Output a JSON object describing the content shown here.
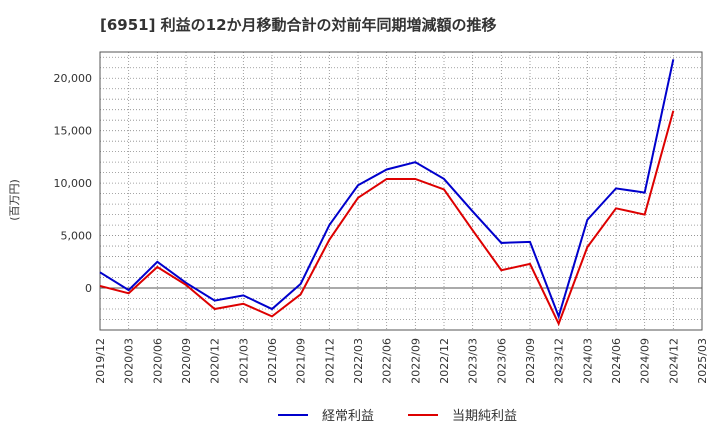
{
  "chart_data": {
    "type": "line",
    "title": "[6951]  利益の12か月移動合計の対前年同期増減額の推移",
    "ylabel": "(百万円)",
    "xlabel": "",
    "ylim": [
      -4000,
      22500
    ],
    "yticks": [
      0,
      5000,
      10000,
      15000,
      20000
    ],
    "ytick_labels": [
      "0",
      "5,000",
      "10,000",
      "15,000",
      "20,000"
    ],
    "categories": [
      "2019/12",
      "2020/03",
      "2020/06",
      "2020/09",
      "2020/12",
      "2021/03",
      "2021/06",
      "2021/09",
      "2021/12",
      "2022/03",
      "2022/06",
      "2022/09",
      "2022/12",
      "2023/03",
      "2023/06",
      "2023/09",
      "2023/12",
      "2024/03",
      "2024/06",
      "2024/09",
      "2024/12",
      "2025/03"
    ],
    "series": [
      {
        "name": "経常利益",
        "color": "#0000cc",
        "values": [
          1500,
          -200,
          2500,
          500,
          -1200,
          -700,
          -2000,
          400,
          6000,
          9800,
          11300,
          12000,
          10400,
          7300,
          4300,
          4400,
          -2700,
          6500,
          9500,
          9100,
          21800,
          null
        ]
      },
      {
        "name": "当期純利益",
        "color": "#dd0000",
        "values": [
          200,
          -500,
          2000,
          300,
          -2000,
          -1500,
          -2700,
          -600,
          4600,
          8600,
          10400,
          10400,
          9400,
          5500,
          1700,
          2300,
          -3400,
          3900,
          7600,
          7000,
          16900,
          null
        ]
      }
    ],
    "grid": true,
    "legend_position": "bottom-center"
  }
}
